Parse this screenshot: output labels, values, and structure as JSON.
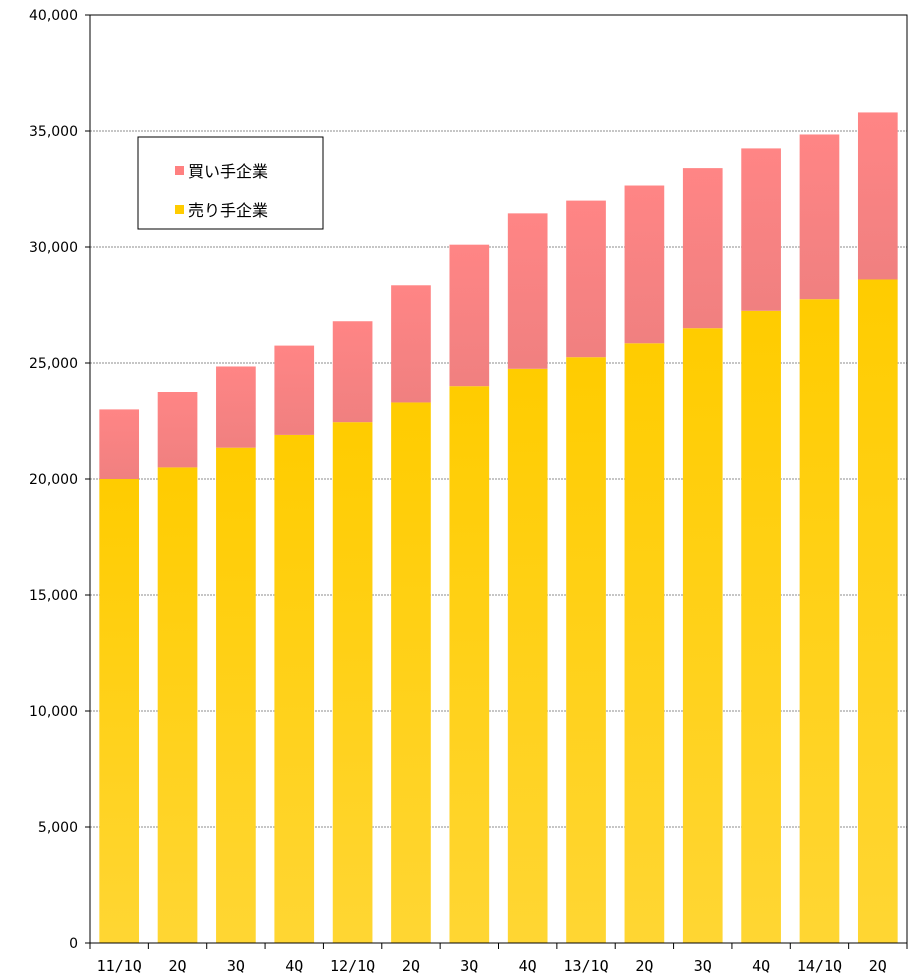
{
  "chart_data": {
    "type": "bar",
    "stacked": true,
    "categories": [
      "11/1Q",
      "2Q",
      "3Q",
      "4Q",
      "12/1Q",
      "2Q",
      "3Q",
      "4Q",
      "13/1Q",
      "2Q",
      "3Q",
      "4Q",
      "14/1Q",
      "2Q"
    ],
    "series": [
      {
        "name": "売り手企業",
        "color": "#ffcc00",
        "values": [
          20000,
          20500,
          21350,
          21900,
          22450,
          23300,
          24000,
          24750,
          25250,
          25850,
          26500,
          27250,
          27750,
          28600
        ]
      },
      {
        "name": "買い手企業",
        "color": "#ff8080",
        "values": [
          3000,
          3250,
          3500,
          3850,
          4350,
          5050,
          6100,
          6700,
          6750,
          6800,
          6900,
          7000,
          7100,
          7200
        ]
      }
    ],
    "ylim": [
      0,
      40000
    ],
    "yticks": [
      "0",
      "5,000",
      "10,000",
      "15,000",
      "20,000",
      "25,000",
      "30,000",
      "35,000",
      "40,000"
    ],
    "ytick_values": [
      0,
      5000,
      10000,
      15000,
      20000,
      25000,
      30000,
      35000,
      40000
    ],
    "grid": true,
    "legend": {
      "placement": "top-left",
      "items": [
        "買い手企業",
        "売り手企業"
      ]
    }
  }
}
